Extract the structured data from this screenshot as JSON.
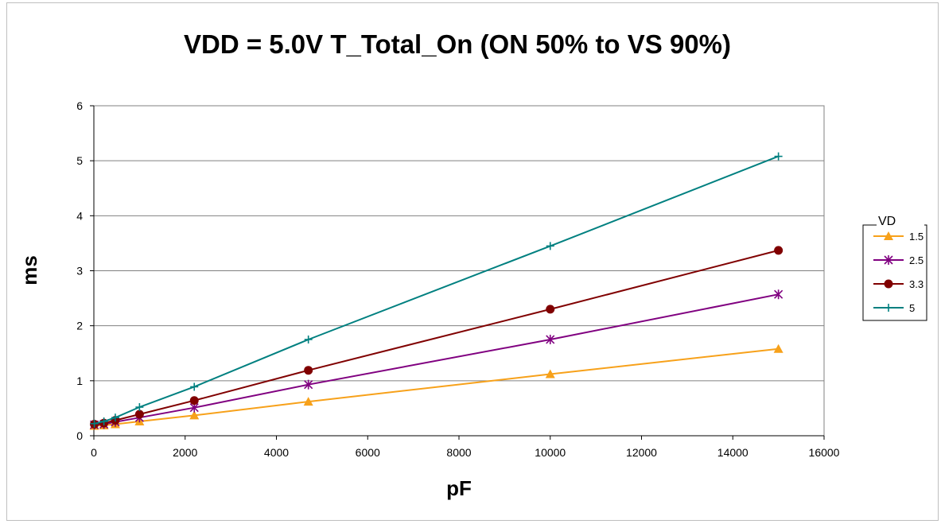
{
  "chart_data": {
    "type": "line",
    "title": "VDD = 5.0V  T_Total_On (ON 50% to VS 90%)",
    "xlabel": "pF",
    "ylabel": "ms",
    "xlim": [
      0,
      16000
    ],
    "ylim": [
      0,
      6
    ],
    "x_ticks": [
      "0",
      "2000",
      "4000",
      "6000",
      "8000",
      "10000",
      "12000",
      "14000",
      "16000"
    ],
    "y_ticks": [
      "0",
      "1",
      "2",
      "3",
      "4",
      "5",
      "6"
    ],
    "grid": "horizontal",
    "legend": {
      "title": "VD",
      "placement": "right"
    },
    "series": [
      {
        "name": "1.5",
        "color": "#F7A11A",
        "marker": "triangle",
        "points": [
          [
            10,
            0.18
          ],
          [
            220,
            0.19
          ],
          [
            470,
            0.21
          ],
          [
            1000,
            0.26
          ],
          [
            2200,
            0.37
          ],
          [
            4700,
            0.62
          ],
          [
            10000,
            1.12
          ],
          [
            15000,
            1.58
          ]
        ]
      },
      {
        "name": "2.5",
        "color": "#800080",
        "marker": "star",
        "points": [
          [
            10,
            0.2
          ],
          [
            220,
            0.21
          ],
          [
            470,
            0.25
          ],
          [
            1000,
            0.33
          ],
          [
            2200,
            0.51
          ],
          [
            4700,
            0.93
          ],
          [
            10000,
            1.75
          ],
          [
            15000,
            2.57
          ]
        ]
      },
      {
        "name": "3.3",
        "color": "#800000",
        "marker": "circle",
        "points": [
          [
            10,
            0.21
          ],
          [
            220,
            0.23
          ],
          [
            470,
            0.28
          ],
          [
            1000,
            0.39
          ],
          [
            2200,
            0.64
          ],
          [
            4700,
            1.19
          ],
          [
            10000,
            2.3
          ],
          [
            15000,
            3.37
          ]
        ]
      },
      {
        "name": "5",
        "color": "#008080",
        "marker": "plus",
        "points": [
          [
            10,
            0.22
          ],
          [
            220,
            0.26
          ],
          [
            470,
            0.33
          ],
          [
            1000,
            0.52
          ],
          [
            2200,
            0.89
          ],
          [
            4700,
            1.75
          ],
          [
            10000,
            3.45
          ],
          [
            15000,
            5.08
          ]
        ]
      }
    ]
  }
}
